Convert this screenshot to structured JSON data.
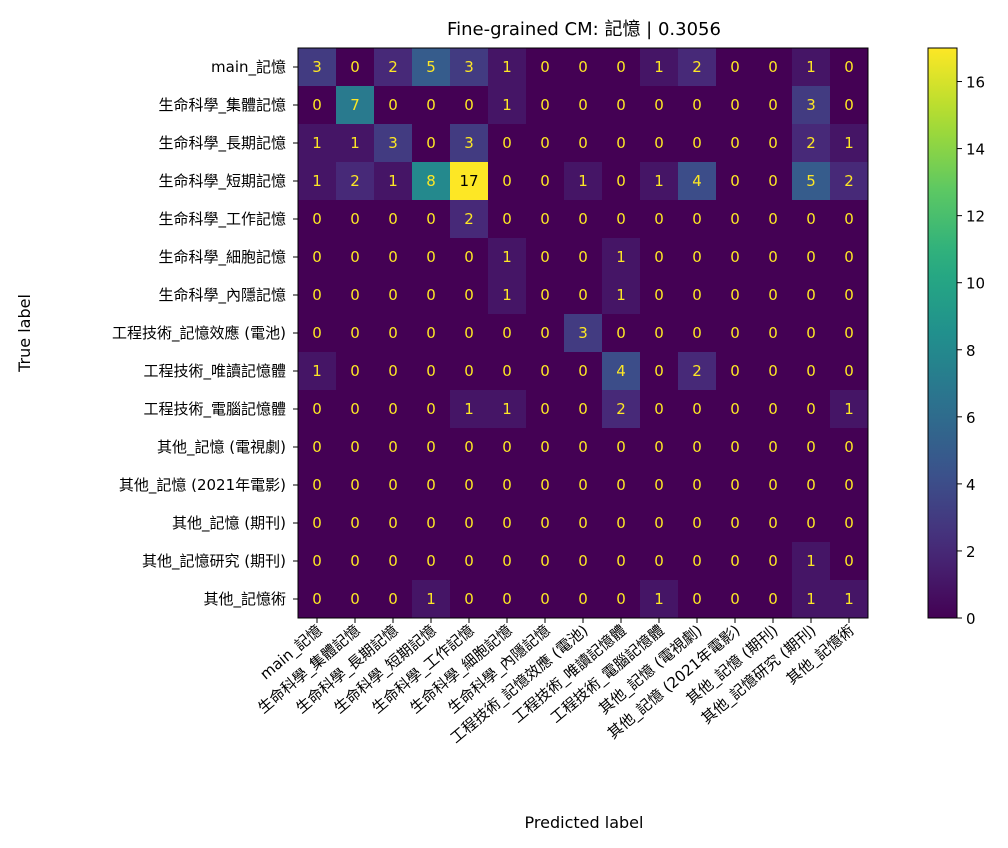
{
  "chart_data": {
    "type": "heatmap",
    "title": "Fine-grained CM: 記憶 | 0.3056",
    "xlabel": "Predicted label",
    "ylabel": "True label",
    "labels": [
      "main_記憶",
      "生命科學_集體記憶",
      "生命科學_長期記憶",
      "生命科學_短期記憶",
      "生命科學_工作記憶",
      "生命科學_細胞記憶",
      "生命科學_內隱記憶",
      "工程技術_記憶效應 (電池)",
      "工程技術_唯讀記憶體",
      "工程技術_電腦記憶體",
      "其他_記憶 (電視劇)",
      "其他_記憶 (2021年電影)",
      "其他_記憶 (期刊)",
      "其他_記憶研究 (期刊)",
      "其他_記憶術"
    ],
    "matrix": [
      [
        3,
        0,
        2,
        5,
        3,
        1,
        0,
        0,
        0,
        1,
        2,
        0,
        0,
        1,
        0
      ],
      [
        0,
        7,
        0,
        0,
        0,
        1,
        0,
        0,
        0,
        0,
        0,
        0,
        0,
        3,
        0
      ],
      [
        1,
        1,
        3,
        0,
        3,
        0,
        0,
        0,
        0,
        0,
        0,
        0,
        0,
        2,
        1
      ],
      [
        1,
        2,
        1,
        8,
        17,
        0,
        0,
        1,
        0,
        1,
        4,
        0,
        0,
        5,
        2
      ],
      [
        0,
        0,
        0,
        0,
        2,
        0,
        0,
        0,
        0,
        0,
        0,
        0,
        0,
        0,
        0
      ],
      [
        0,
        0,
        0,
        0,
        0,
        1,
        0,
        0,
        1,
        0,
        0,
        0,
        0,
        0,
        0
      ],
      [
        0,
        0,
        0,
        0,
        0,
        1,
        0,
        0,
        1,
        0,
        0,
        0,
        0,
        0,
        0
      ],
      [
        0,
        0,
        0,
        0,
        0,
        0,
        0,
        3,
        0,
        0,
        0,
        0,
        0,
        0,
        0
      ],
      [
        1,
        0,
        0,
        0,
        0,
        0,
        0,
        0,
        4,
        0,
        2,
        0,
        0,
        0,
        0
      ],
      [
        0,
        0,
        0,
        0,
        1,
        1,
        0,
        0,
        2,
        0,
        0,
        0,
        0,
        0,
        1
      ],
      [
        0,
        0,
        0,
        0,
        0,
        0,
        0,
        0,
        0,
        0,
        0,
        0,
        0,
        0,
        0
      ],
      [
        0,
        0,
        0,
        0,
        0,
        0,
        0,
        0,
        0,
        0,
        0,
        0,
        0,
        0,
        0
      ],
      [
        0,
        0,
        0,
        0,
        0,
        0,
        0,
        0,
        0,
        0,
        0,
        0,
        0,
        0,
        0
      ],
      [
        0,
        0,
        0,
        0,
        0,
        0,
        0,
        0,
        0,
        0,
        0,
        0,
        0,
        1,
        0
      ],
      [
        0,
        0,
        0,
        1,
        0,
        0,
        0,
        0,
        0,
        1,
        0,
        0,
        0,
        1,
        1
      ]
    ],
    "colorscale": "viridis",
    "vmin": 0,
    "vmax": 17,
    "colorbar_ticks": [
      0,
      2,
      4,
      6,
      8,
      10,
      12,
      14,
      16
    ],
    "text_color_low": "#fde725",
    "text_color_high": "#000000"
  }
}
